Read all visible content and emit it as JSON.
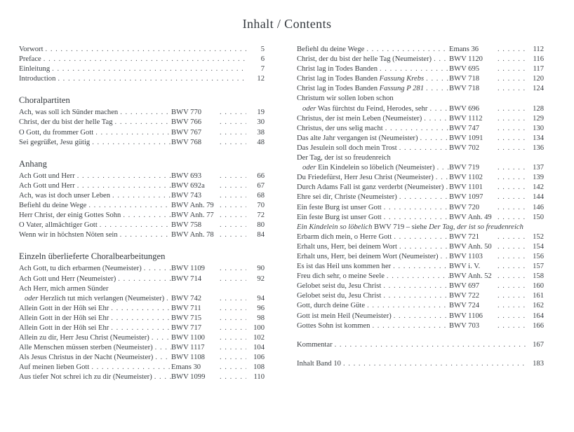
{
  "page_title": "Inhalt / Contents",
  "left_column": {
    "front_matter": [
      {
        "segments": [
          {
            "t": "Vorwort"
          }
        ],
        "page": "5"
      },
      {
        "segments": [
          {
            "t": "Preface"
          }
        ],
        "page": "6"
      },
      {
        "segments": [
          {
            "t": "Einleitung"
          }
        ],
        "page": "7"
      },
      {
        "segments": [
          {
            "t": "Introduction"
          }
        ],
        "page": "12"
      }
    ],
    "sections": [
      {
        "heading": "Choralpartiten",
        "entries": [
          {
            "segments": [
              {
                "t": "Ach, was soll ich Sünder machen"
              }
            ],
            "catalog": "BWV 770",
            "page": "19"
          },
          {
            "segments": [
              {
                "t": "Christ, der du bist der helle Tag"
              }
            ],
            "catalog": "BWV 766",
            "page": "30"
          },
          {
            "segments": [
              {
                "t": "O Gott, du frommer Gott"
              }
            ],
            "catalog": "BWV 767",
            "page": "38"
          },
          {
            "segments": [
              {
                "t": "Sei gegrüßet, Jesu gütig"
              }
            ],
            "catalog": "BWV 768",
            "page": "48"
          }
        ]
      },
      {
        "heading": "Anhang",
        "entries": [
          {
            "segments": [
              {
                "t": "Ach Gott und Herr"
              }
            ],
            "catalog": "BWV 693",
            "page": "66"
          },
          {
            "segments": [
              {
                "t": "Ach Gott und Herr"
              }
            ],
            "catalog": "BWV 692a",
            "page": "67"
          },
          {
            "segments": [
              {
                "t": "Ach, was ist doch unser Leben"
              }
            ],
            "catalog": "BWV 743",
            "page": "68"
          },
          {
            "segments": [
              {
                "t": "Befiehl du deine Wege"
              }
            ],
            "catalog": "BWV Anh. 79",
            "page": "70"
          },
          {
            "segments": [
              {
                "t": "Herr Christ, der einig Gottes Sohn"
              }
            ],
            "catalog": "BWV Anh. 77",
            "page": "72"
          },
          {
            "segments": [
              {
                "t": "O Vater, allmächtiger Gott"
              }
            ],
            "catalog": "BWV 758",
            "page": "80"
          },
          {
            "segments": [
              {
                "t": "Wenn wir in höchsten Nöten sein"
              }
            ],
            "catalog": "BWV Anh. 78",
            "page": "84"
          }
        ]
      },
      {
        "heading": "Einzeln überlieferte Choralbearbeitungen",
        "entries": [
          {
            "segments": [
              {
                "t": "Ach Gott, tu dich erbarmen (Neumeister)"
              }
            ],
            "catalog": "BWV 1109",
            "page": "90"
          },
          {
            "segments": [
              {
                "t": "Ach Gott und Herr (Neumeister)"
              }
            ],
            "catalog": "BWV 714",
            "page": "92"
          },
          {
            "segments": [
              {
                "t": "Ach Herr, mich armen Sünder"
              }
            ]
          },
          {
            "segments": [
              {
                "t": "oder",
                "i": true
              },
              {
                "t": " Herzlich tut mich verlangen (Neumeister)"
              }
            ],
            "catalog": "BWV 742",
            "page": "94",
            "indent": true
          },
          {
            "segments": [
              {
                "t": "Allein Gott in der Höh sei Ehr"
              }
            ],
            "catalog": "BWV 711",
            "page": "96"
          },
          {
            "segments": [
              {
                "t": "Allein Gott in der Höh sei Ehr"
              }
            ],
            "catalog": "BWV 715",
            "page": "98"
          },
          {
            "segments": [
              {
                "t": "Allein Gott in der Höh sei Ehr"
              }
            ],
            "catalog": "BWV 717",
            "page": "100"
          },
          {
            "segments": [
              {
                "t": "Allein zu dir, Herr Jesu Christ (Neumeister)"
              }
            ],
            "catalog": "BWV 1100",
            "page": "102"
          },
          {
            "segments": [
              {
                "t": "Alle Menschen müssen sterben (Neumeister)"
              }
            ],
            "catalog": "BWV 1117",
            "page": "104"
          },
          {
            "segments": [
              {
                "t": "Als Jesus Christus in der Nacht (Neumeister)"
              }
            ],
            "catalog": "BWV 1108",
            "page": "106"
          },
          {
            "segments": [
              {
                "t": "Auf meinen lieben Gott"
              }
            ],
            "catalog": "Emans 30",
            "page": "108"
          },
          {
            "segments": [
              {
                "t": "Aus tiefer Not schrei ich zu dir (Neumeister)"
              }
            ],
            "catalog": "BWV 1099",
            "page": "110"
          }
        ]
      }
    ]
  },
  "right_column": {
    "entries": [
      {
        "segments": [
          {
            "t": "Befiehl du deine Wege"
          }
        ],
        "catalog": "Emans 36",
        "page": "112"
      },
      {
        "segments": [
          {
            "t": "Christ, der du bist der helle Tag (Neumeister)"
          }
        ],
        "catalog": "BWV 1120",
        "page": "116"
      },
      {
        "segments": [
          {
            "t": "Christ lag in Todes Banden"
          }
        ],
        "catalog": "BWV 695",
        "page": "117"
      },
      {
        "segments": [
          {
            "t": "Christ lag in Todes Banden "
          },
          {
            "t": "Fassung Krebs",
            "i": true
          }
        ],
        "catalog": "BWV 718",
        "page": "120"
      },
      {
        "segments": [
          {
            "t": "Christ lag in Todes Banden "
          },
          {
            "t": "Fassung P 281",
            "i": true
          }
        ],
        "catalog": "BWV 718",
        "page": "124"
      },
      {
        "segments": [
          {
            "t": "Christum wir sollen loben schon"
          }
        ]
      },
      {
        "segments": [
          {
            "t": "oder",
            "i": true
          },
          {
            "t": " Was fürchtst du Feind, Herodes, sehr"
          }
        ],
        "catalog": "BWV 696",
        "page": "128",
        "indent": true
      },
      {
        "segments": [
          {
            "t": "Christus, der ist mein Leben (Neumeister)"
          }
        ],
        "catalog": "BWV 1112",
        "page": "129"
      },
      {
        "segments": [
          {
            "t": "Christus, der uns selig macht"
          }
        ],
        "catalog": "BWV 747",
        "page": "130"
      },
      {
        "segments": [
          {
            "t": "Das alte Jahr vergangen ist (Neumeister)"
          }
        ],
        "catalog": "BWV 1091",
        "page": "134"
      },
      {
        "segments": [
          {
            "t": "Das Jesulein soll doch mein Trost"
          }
        ],
        "catalog": "BWV 702",
        "page": "136"
      },
      {
        "segments": [
          {
            "t": "Der Tag, der ist so freudenreich"
          }
        ]
      },
      {
        "segments": [
          {
            "t": "oder",
            "i": true
          },
          {
            "t": " Ein Kindelein so löbelich (Neumeister)"
          }
        ],
        "catalog": "BWV 719",
        "page": "137",
        "indent": true
      },
      {
        "segments": [
          {
            "t": "Du Friedefürst, Herr Jesu Christ (Neumeister)"
          }
        ],
        "catalog": "BWV 1102",
        "page": "139"
      },
      {
        "segments": [
          {
            "t": "Durch Adams Fall ist ganz verderbt (Neumeister)"
          }
        ],
        "catalog": "BWV 1101",
        "page": "142"
      },
      {
        "segments": [
          {
            "t": "Ehre sei dir, Christe (Neumeister)"
          }
        ],
        "catalog": "BWV 1097",
        "page": "144"
      },
      {
        "segments": [
          {
            "t": "Ein feste Burg ist unser Gott"
          }
        ],
        "catalog": "BWV 720",
        "page": "146"
      },
      {
        "segments": [
          {
            "t": "Ein feste Burg ist unser Gott"
          }
        ],
        "catalog": "BWV Anh. 49",
        "page": "150"
      },
      {
        "segments": [
          {
            "t": "Ein Kindelein so löbelich",
            "i": true
          },
          {
            "t": " BWV 719 – siehe "
          },
          {
            "t": "Der Tag, der ist so freudenreich",
            "i": true
          }
        ]
      },
      {
        "segments": [
          {
            "t": "Erbarm dich mein, o Herre Gott"
          }
        ],
        "catalog": "BWV 721",
        "page": "152"
      },
      {
        "segments": [
          {
            "t": "Erhalt uns, Herr, bei deinem Wort"
          }
        ],
        "catalog": "BWV Anh. 50",
        "page": "154"
      },
      {
        "segments": [
          {
            "t": "Erhalt uns, Herr, bei deinem Wort (Neumeister)"
          }
        ],
        "catalog": "BWV 1103",
        "page": "156"
      },
      {
        "segments": [
          {
            "t": "Es ist das Heil uns kommen her"
          }
        ],
        "catalog": "BWV i. V.",
        "page": "157"
      },
      {
        "segments": [
          {
            "t": "Freu dich sehr, o meine Seele"
          }
        ],
        "catalog": "BWV Anh. 52",
        "page": "158"
      },
      {
        "segments": [
          {
            "t": "Gelobet seist du, Jesu Christ"
          }
        ],
        "catalog": "BWV 697",
        "page": "160"
      },
      {
        "segments": [
          {
            "t": "Gelobet seist du, Jesu Christ"
          }
        ],
        "catalog": "BWV 722",
        "page": "161"
      },
      {
        "segments": [
          {
            "t": "Gott, durch deine Güte"
          }
        ],
        "catalog": "BWV 724",
        "page": "162"
      },
      {
        "segments": [
          {
            "t": "Gott ist mein Heil (Neumeister)"
          }
        ],
        "catalog": "BWV 1106",
        "page": "164"
      },
      {
        "segments": [
          {
            "t": "Gottes Sohn ist kommen"
          }
        ],
        "catalog": "BWV 703",
        "page": "166"
      }
    ],
    "footer": [
      {
        "segments": [
          {
            "t": "Kommentar"
          }
        ],
        "page": "167"
      },
      {
        "segments": [
          {
            "t": "Inhalt Band 10"
          }
        ],
        "page": "183"
      }
    ]
  }
}
